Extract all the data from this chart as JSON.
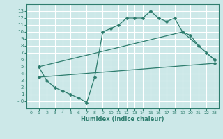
{
  "title": "",
  "xlabel": "Humidex (Indice chaleur)",
  "ylabel": "",
  "background_color": "#cce8e8",
  "grid_color": "#ffffff",
  "line_color": "#2e7d6e",
  "xlim": [
    -0.5,
    23.5
  ],
  "ylim": [
    -1,
    14
  ],
  "yticks": [
    0,
    1,
    2,
    3,
    4,
    5,
    6,
    7,
    8,
    9,
    10,
    11,
    12,
    13
  ],
  "xticks": [
    0,
    1,
    2,
    3,
    4,
    5,
    6,
    7,
    8,
    9,
    10,
    11,
    12,
    13,
    14,
    15,
    16,
    17,
    18,
    19,
    20,
    21,
    22,
    23
  ],
  "line1_x": [
    1,
    2,
    3,
    4,
    5,
    6,
    7,
    8,
    9,
    10,
    11,
    12,
    13,
    14,
    15,
    16,
    17,
    18,
    19,
    20,
    21,
    22,
    23
  ],
  "line1_y": [
    5,
    3,
    2,
    1.5,
    1,
    0.5,
    -0.2,
    3.5,
    10,
    10.5,
    11,
    12,
    12,
    12,
    13,
    12,
    11.5,
    12,
    10,
    9.5,
    8,
    7,
    6
  ],
  "line2_x": [
    1,
    19,
    23
  ],
  "line2_y": [
    5,
    10,
    6
  ],
  "line3_x": [
    1,
    23
  ],
  "line3_y": [
    3.5,
    5.5
  ],
  "marker_size": 2.5
}
